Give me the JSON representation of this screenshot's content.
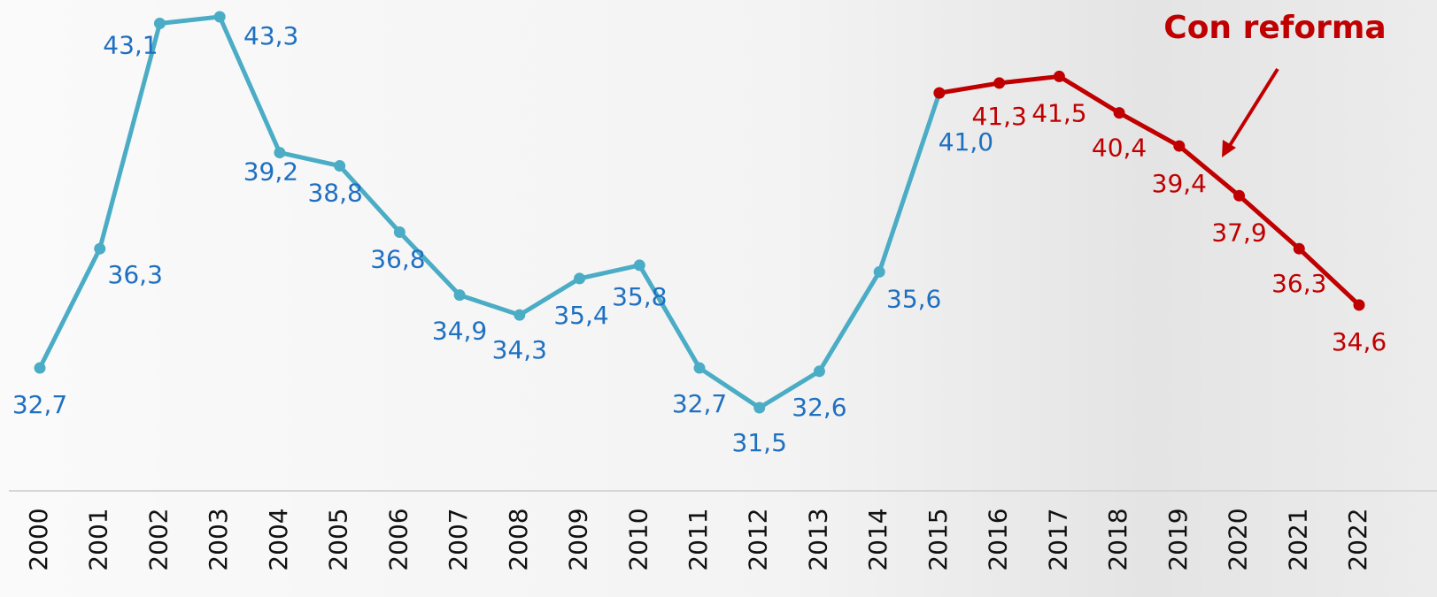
{
  "chart_data": {
    "type": "line",
    "annotation": "Con reforma",
    "categories": [
      "2000",
      "2001",
      "2002",
      "2003",
      "2004",
      "2005",
      "2006",
      "2007",
      "2008",
      "2009",
      "2010",
      "2011",
      "2012",
      "2013",
      "2014",
      "2015",
      "2016",
      "2017",
      "2018",
      "2019",
      "2020",
      "2021",
      "2022"
    ],
    "series": [
      {
        "color": "#4bacc6",
        "label_color": "#1f70c1",
        "values": [
          32.7,
          36.3,
          43.1,
          43.3,
          39.2,
          38.8,
          36.8,
          34.9,
          34.3,
          35.4,
          35.8,
          32.7,
          31.5,
          32.6,
          35.6,
          41.0,
          null,
          null,
          null,
          null,
          null,
          null,
          null
        ],
        "value_labels": [
          "32,7",
          "36,3",
          "43,1",
          "43,3",
          "39,2",
          "38,8",
          "36,8",
          "34,9",
          "34,3",
          "35,4",
          "35,8",
          "32,7",
          "31,5",
          "32,6",
          "35,6",
          "41,0",
          null,
          null,
          null,
          null,
          null,
          null,
          null
        ]
      },
      {
        "color": "#c00000",
        "label_color": "#c00000",
        "values": [
          null,
          null,
          null,
          null,
          null,
          null,
          null,
          null,
          null,
          null,
          null,
          null,
          null,
          null,
          null,
          41.0,
          41.3,
          41.5,
          40.4,
          39.4,
          37.9,
          36.3,
          34.6
        ],
        "value_labels": [
          null,
          null,
          null,
          null,
          null,
          null,
          null,
          null,
          null,
          null,
          null,
          null,
          null,
          null,
          null,
          null,
          "41,3",
          "41,5",
          "40,4",
          "39,4",
          "37,9",
          "36,3",
          "34,6"
        ]
      }
    ]
  }
}
